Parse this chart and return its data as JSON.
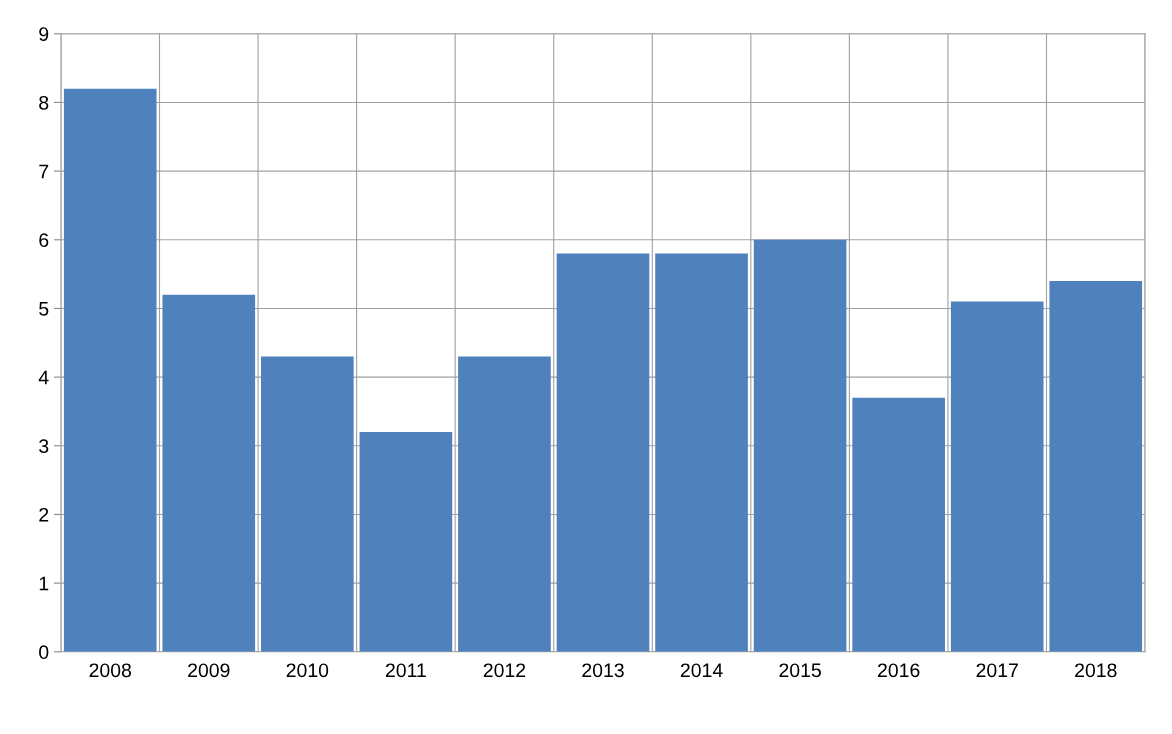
{
  "chart_data": {
    "type": "bar",
    "categories": [
      "2008",
      "2009",
      "2010",
      "2011",
      "2012",
      "2013",
      "2014",
      "2015",
      "2016",
      "2017",
      "2018"
    ],
    "values": [
      8.2,
      5.2,
      4.3,
      3.2,
      4.3,
      5.8,
      5.8,
      6.0,
      3.7,
      5.1,
      5.4
    ],
    "color": "#4f81bd",
    "ylim": [
      0,
      9
    ],
    "yticks": [
      0,
      1,
      2,
      3,
      4,
      5,
      6,
      7,
      8,
      9
    ],
    "grid": true
  }
}
